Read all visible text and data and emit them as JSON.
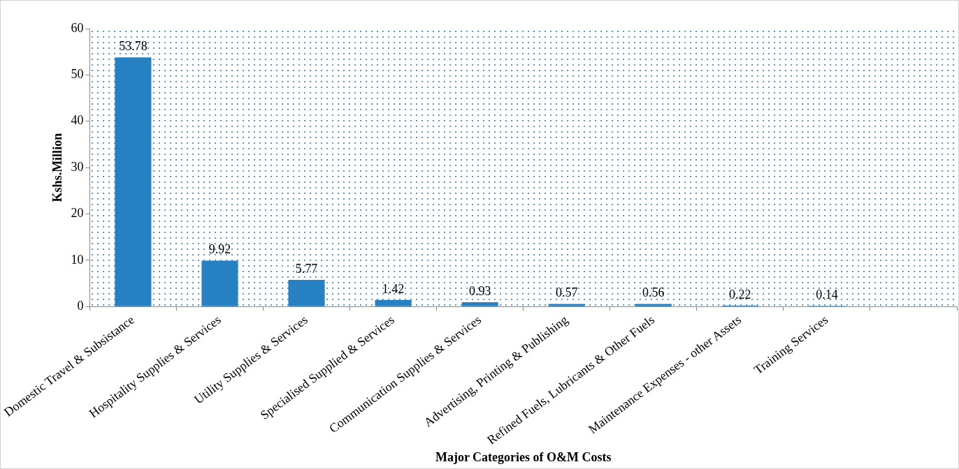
{
  "chart_data": {
    "type": "bar",
    "xlabel": "Major Categories of O&M Costs",
    "ylabel": "Kshs.Million",
    "categories": [
      "Domestic Travel & Subsistance",
      "Hospitality Supplies & Services",
      "Utility Supplies & Services",
      "Specialised Supplied & Services",
      "Communication Supplies & Services",
      "Advertising, Printing & Publishing",
      "Refined Fuels, Lubricants & Other Fuels",
      "Maintenance Expenses - other Assets",
      "Training Services",
      null
    ],
    "values": [
      53.78,
      9.92,
      5.77,
      1.42,
      0.93,
      0.57,
      0.56,
      0.22,
      0.14,
      null
    ],
    "color": "#2680c2",
    "ylim": [
      0,
      60
    ],
    "yticks": [
      0,
      10,
      20,
      30,
      40,
      50,
      60
    ],
    "grid": false,
    "data_labels": true,
    "legend": false
  }
}
